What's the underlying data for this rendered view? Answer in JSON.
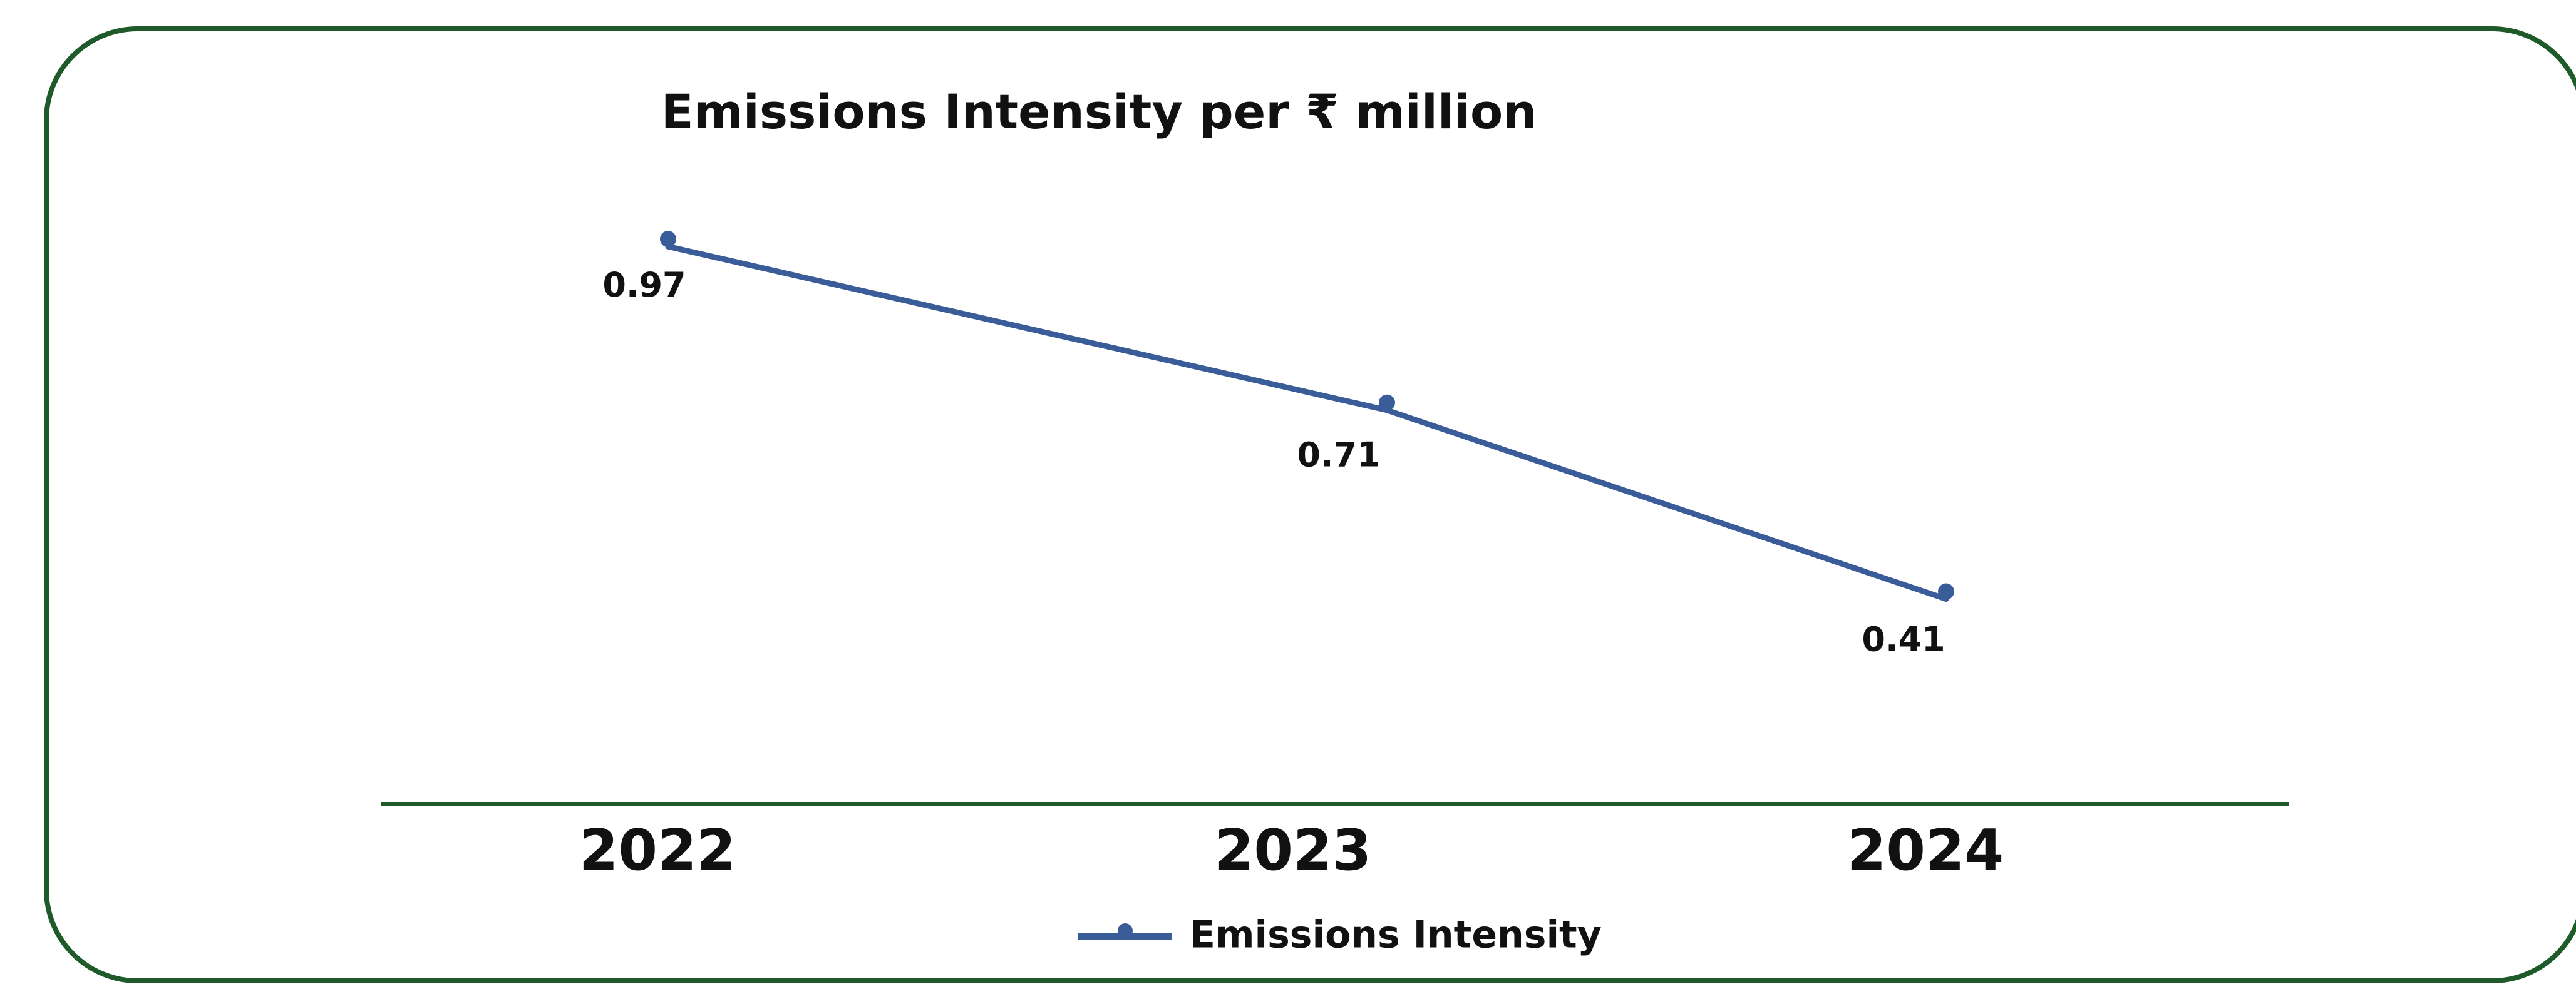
{
  "chart_data": {
    "type": "line",
    "title": "Emissions Intensity per ₹ million",
    "categories": [
      "2022",
      "2023",
      "2024"
    ],
    "series": [
      {
        "name": "Emissions Intensity",
        "values": [
          0.97,
          0.71,
          0.41
        ],
        "labels": [
          "0.97",
          "0.71",
          "0.41"
        ]
      }
    ],
    "xlabel": "",
    "ylabel": "",
    "ylim": [
      0,
      1.1
    ],
    "grid": false,
    "legend_position": "bottom",
    "colors": {
      "line": "#3a5c99",
      "axis": "#1f5a2a",
      "frame": "#1f5a2a"
    }
  }
}
